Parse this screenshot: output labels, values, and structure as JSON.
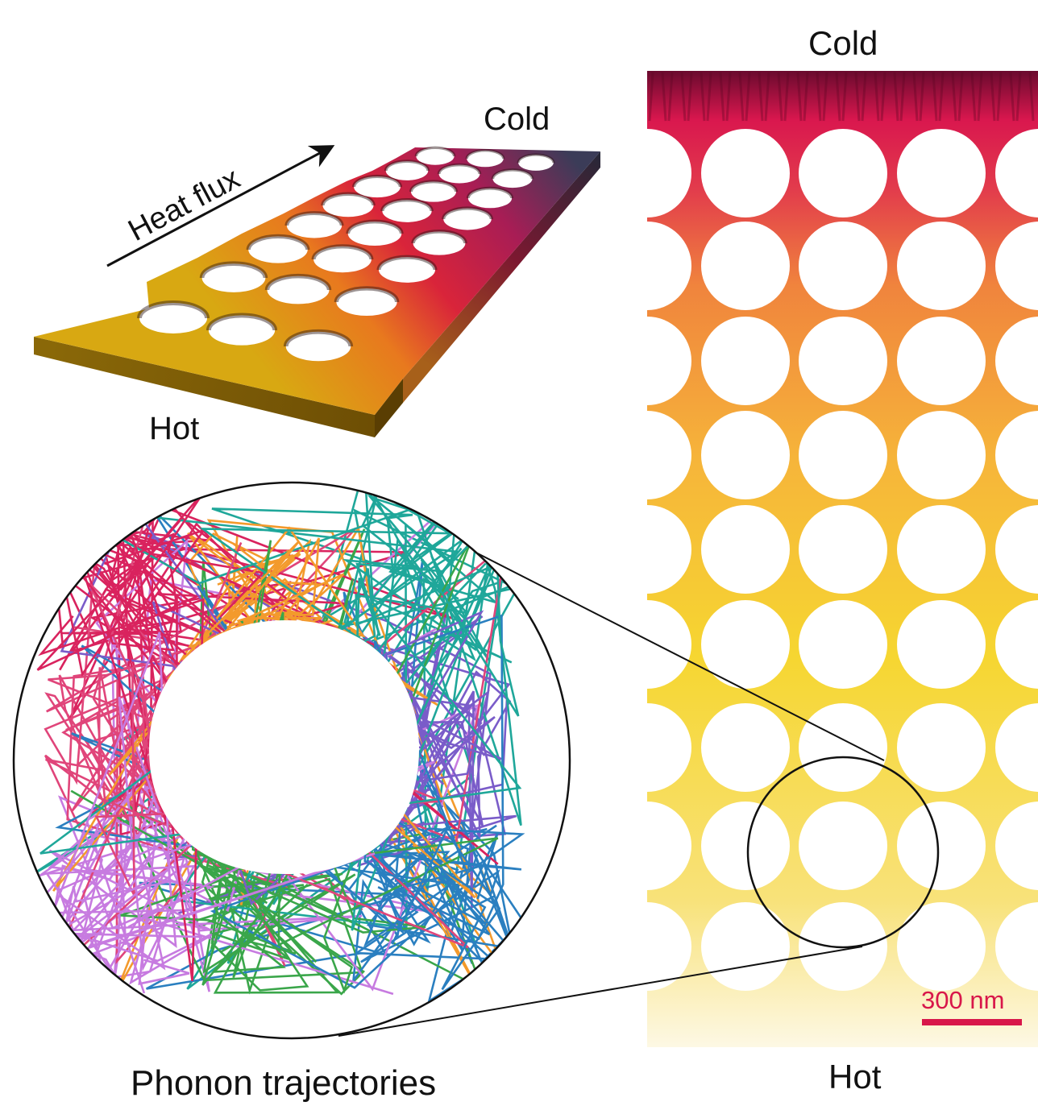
{
  "labels": {
    "cold_right": "Cold",
    "hot_right": "Hot",
    "cold_left": "Cold",
    "hot_left": "Hot",
    "heat_flux": "Heat flux",
    "phonon": "Phonon trajectories",
    "scale_bar": "300 nm"
  },
  "colors": {
    "gradient_hot": "#fdf6d8",
    "gradient_mid": "#f6d631",
    "gradient_warm": "#f08a3c",
    "gradient_cold": "#d9174e",
    "gradient_coldest": "#5a0a2a",
    "scale_bar": "#d8174a",
    "trajectory_palette": [
      "#d9235e",
      "#1fa79a",
      "#c77be0",
      "#2a7fc0",
      "#f39a2c",
      "#3aa64a",
      "#e0457a",
      "#7a5cc9"
    ]
  }
}
